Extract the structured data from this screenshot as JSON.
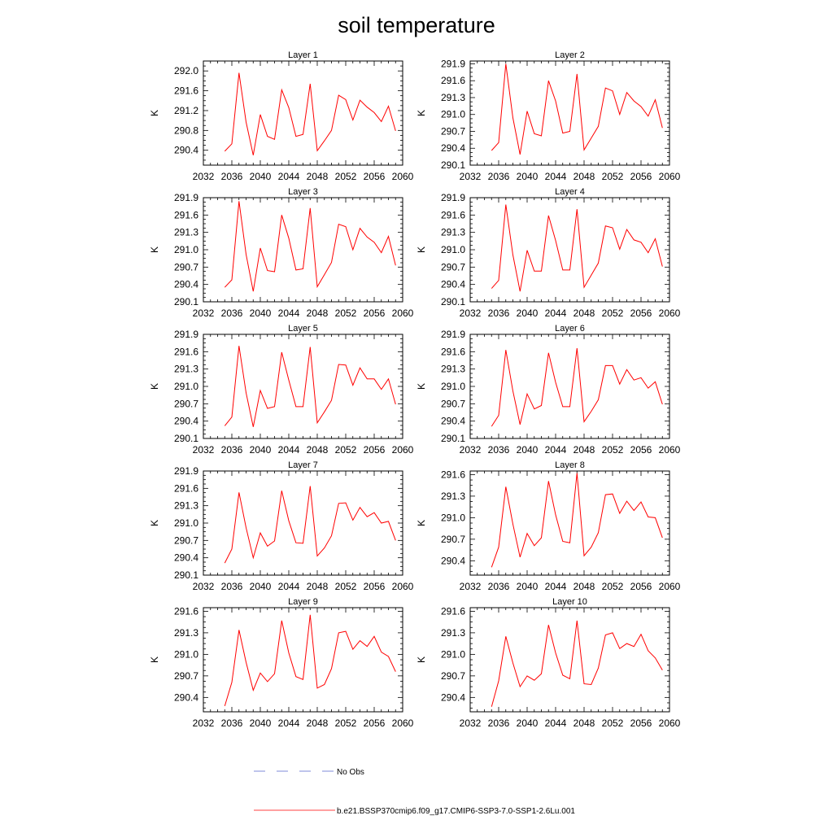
{
  "figure": {
    "title": "soil temperature",
    "legend": [
      {
        "label": "No Obs",
        "color": "#5566cc",
        "style": "dashed"
      },
      {
        "label": "b.e21.BSSP370cmip6.f09_g17.CMIP6-SSP3-7.0-SSP1-2.6Lu.001",
        "color": "#ff0000",
        "style": "solid"
      }
    ]
  },
  "chart_data": [
    {
      "type": "line",
      "title": "Layer 1",
      "xlabel": "",
      "ylabel": "K",
      "xlim": [
        2032,
        2060
      ],
      "ylim": [
        290.1,
        292.2
      ],
      "xticks": [
        2032,
        2036,
        2040,
        2044,
        2048,
        2052,
        2056,
        2060
      ],
      "yticks": [
        "290.4",
        "290.8",
        "291.2",
        "291.6",
        "292.0"
      ],
      "series": [
        {
          "color": "#ff0000",
          "x": [
            2035,
            2036,
            2037,
            2038,
            2039,
            2040,
            2041,
            2042,
            2043,
            2044,
            2045,
            2046,
            2047,
            2048,
            2049,
            2050,
            2051,
            2052,
            2053,
            2054,
            2055,
            2056,
            2057,
            2058,
            2059
          ],
          "y": [
            290.38,
            290.53,
            291.96,
            290.97,
            290.3,
            291.12,
            290.68,
            290.62,
            291.62,
            291.26,
            290.68,
            290.72,
            291.74,
            290.39,
            290.59,
            290.8,
            291.51,
            291.42,
            291.01,
            291.41,
            291.27,
            291.16,
            290.98,
            291.29,
            290.79
          ]
        }
      ]
    },
    {
      "type": "line",
      "title": "Layer 2",
      "xlabel": "",
      "ylabel": "K",
      "xlim": [
        2032,
        2060
      ],
      "ylim": [
        290.1,
        291.95
      ],
      "xticks": [
        2032,
        2036,
        2040,
        2044,
        2048,
        2052,
        2056,
        2060
      ],
      "yticks": [
        "290.1",
        "290.4",
        "290.7",
        "291.0",
        "291.3",
        "291.6",
        "291.9"
      ],
      "series": [
        {
          "color": "#ff0000",
          "x": [
            2035,
            2036,
            2037,
            2038,
            2039,
            2040,
            2041,
            2042,
            2043,
            2044,
            2045,
            2046,
            2047,
            2048,
            2049,
            2050,
            2051,
            2052,
            2053,
            2054,
            2055,
            2056,
            2057,
            2058,
            2059
          ],
          "y": [
            290.36,
            290.5,
            291.9,
            290.94,
            290.29,
            291.06,
            290.66,
            290.62,
            291.6,
            291.24,
            290.67,
            290.7,
            291.72,
            290.37,
            290.58,
            290.79,
            291.47,
            291.42,
            291.0,
            291.39,
            291.24,
            291.14,
            290.97,
            291.26,
            290.76
          ]
        }
      ]
    },
    {
      "type": "line",
      "title": "Layer 3",
      "xlabel": "",
      "ylabel": "K",
      "xlim": [
        2032,
        2060
      ],
      "ylim": [
        290.1,
        291.9
      ],
      "xticks": [
        2032,
        2036,
        2040,
        2044,
        2048,
        2052,
        2056,
        2060
      ],
      "yticks": [
        "290.1",
        "290.4",
        "290.7",
        "291.0",
        "291.3",
        "291.6",
        "291.9"
      ],
      "series": [
        {
          "color": "#ff0000",
          "x": [
            2035,
            2036,
            2037,
            2038,
            2039,
            2040,
            2041,
            2042,
            2043,
            2044,
            2045,
            2046,
            2047,
            2048,
            2049,
            2050,
            2051,
            2052,
            2053,
            2054,
            2055,
            2056,
            2057,
            2058,
            2059
          ],
          "y": [
            290.35,
            290.48,
            291.84,
            290.92,
            290.28,
            291.03,
            290.64,
            290.62,
            291.6,
            291.2,
            290.65,
            290.67,
            291.72,
            290.36,
            290.57,
            290.78,
            291.44,
            291.4,
            291.0,
            291.37,
            291.22,
            291.13,
            290.95,
            291.23,
            290.73
          ]
        }
      ]
    },
    {
      "type": "line",
      "title": "Layer 4",
      "xlabel": "",
      "ylabel": "K",
      "xlim": [
        2032,
        2060
      ],
      "ylim": [
        290.1,
        291.9
      ],
      "xticks": [
        2032,
        2036,
        2040,
        2044,
        2048,
        2052,
        2056,
        2060
      ],
      "yticks": [
        "290.1",
        "290.4",
        "290.7",
        "291.0",
        "291.3",
        "291.6",
        "291.9"
      ],
      "series": [
        {
          "color": "#ff0000",
          "x": [
            2035,
            2036,
            2037,
            2038,
            2039,
            2040,
            2041,
            2042,
            2043,
            2044,
            2045,
            2046,
            2047,
            2048,
            2049,
            2050,
            2051,
            2052,
            2053,
            2054,
            2055,
            2056,
            2057,
            2058,
            2059
          ],
          "y": [
            290.33,
            290.47,
            291.78,
            290.91,
            290.28,
            290.99,
            290.63,
            290.63,
            291.59,
            291.16,
            290.65,
            290.65,
            291.7,
            290.35,
            290.56,
            290.77,
            291.41,
            291.38,
            291.01,
            291.35,
            291.17,
            291.13,
            290.95,
            291.19,
            290.71
          ]
        }
      ]
    },
    {
      "type": "line",
      "title": "Layer 5",
      "xlabel": "",
      "ylabel": "K",
      "xlim": [
        2032,
        2060
      ],
      "ylim": [
        290.1,
        291.9
      ],
      "xticks": [
        2032,
        2036,
        2040,
        2044,
        2048,
        2052,
        2056,
        2060
      ],
      "yticks": [
        "290.1",
        "290.4",
        "290.7",
        "291.0",
        "291.3",
        "291.6",
        "291.9"
      ],
      "series": [
        {
          "color": "#ff0000",
          "x": [
            2035,
            2036,
            2037,
            2038,
            2039,
            2040,
            2041,
            2042,
            2043,
            2044,
            2045,
            2046,
            2047,
            2048,
            2049,
            2050,
            2051,
            2052,
            2053,
            2054,
            2055,
            2056,
            2057,
            2058,
            2059
          ],
          "y": [
            290.32,
            290.47,
            291.7,
            290.89,
            290.3,
            290.93,
            290.62,
            290.65,
            291.59,
            291.11,
            290.65,
            290.65,
            291.68,
            290.37,
            290.56,
            290.76,
            291.38,
            291.37,
            291.02,
            291.32,
            291.13,
            291.13,
            290.95,
            291.13,
            290.69
          ]
        }
      ]
    },
    {
      "type": "line",
      "title": "Layer 6",
      "xlabel": "",
      "ylabel": "K",
      "xlim": [
        2032,
        2060
      ],
      "ylim": [
        290.1,
        291.9
      ],
      "xticks": [
        2032,
        2036,
        2040,
        2044,
        2048,
        2052,
        2056,
        2060
      ],
      "yticks": [
        "290.1",
        "290.4",
        "290.7",
        "291.0",
        "291.3",
        "291.6",
        "291.9"
      ],
      "series": [
        {
          "color": "#ff0000",
          "x": [
            2035,
            2036,
            2037,
            2038,
            2039,
            2040,
            2041,
            2042,
            2043,
            2044,
            2045,
            2046,
            2047,
            2048,
            2049,
            2050,
            2051,
            2052,
            2053,
            2054,
            2055,
            2056,
            2057,
            2058,
            2059
          ],
          "y": [
            290.31,
            290.5,
            291.63,
            290.92,
            290.34,
            290.87,
            290.61,
            290.67,
            291.58,
            291.07,
            290.65,
            290.65,
            291.66,
            290.39,
            290.57,
            290.77,
            291.36,
            291.36,
            291.04,
            291.29,
            291.11,
            291.15,
            290.97,
            291.08,
            290.69
          ]
        }
      ]
    },
    {
      "type": "line",
      "title": "Layer 7",
      "xlabel": "",
      "ylabel": "K",
      "xlim": [
        2032,
        2060
      ],
      "ylim": [
        290.1,
        291.9
      ],
      "xticks": [
        2032,
        2036,
        2040,
        2044,
        2048,
        2052,
        2056,
        2060
      ],
      "yticks": [
        "290.1",
        "290.4",
        "290.7",
        "291.0",
        "291.3",
        "291.6",
        "291.9"
      ],
      "series": [
        {
          "color": "#ff0000",
          "x": [
            2035,
            2036,
            2037,
            2038,
            2039,
            2040,
            2041,
            2042,
            2043,
            2044,
            2045,
            2046,
            2047,
            2048,
            2049,
            2050,
            2051,
            2052,
            2053,
            2054,
            2055,
            2056,
            2057,
            2058,
            2059
          ],
          "y": [
            290.31,
            290.55,
            291.53,
            290.92,
            290.4,
            290.83,
            290.6,
            290.69,
            291.56,
            291.04,
            290.66,
            290.65,
            291.64,
            290.43,
            290.57,
            290.78,
            291.34,
            291.35,
            291.05,
            291.27,
            291.11,
            291.18,
            291.0,
            291.03,
            290.7
          ]
        }
      ]
    },
    {
      "type": "line",
      "title": "Layer 8",
      "xlabel": "",
      "ylabel": "K",
      "xlim": [
        2032,
        2060
      ],
      "ylim": [
        290.2,
        291.65
      ],
      "xticks": [
        2032,
        2036,
        2040,
        2044,
        2048,
        2052,
        2056,
        2060
      ],
      "yticks": [
        "290.4",
        "290.7",
        "291.0",
        "291.3",
        "291.6"
      ],
      "series": [
        {
          "color": "#ff0000",
          "x": [
            2035,
            2036,
            2037,
            2038,
            2039,
            2040,
            2041,
            2042,
            2043,
            2044,
            2045,
            2046,
            2047,
            2048,
            2049,
            2050,
            2051,
            2052,
            2053,
            2054,
            2055,
            2056,
            2057,
            2058,
            2059
          ],
          "y": [
            290.31,
            290.59,
            291.43,
            290.91,
            290.45,
            290.78,
            290.61,
            290.72,
            291.51,
            291.04,
            290.67,
            290.65,
            291.62,
            290.47,
            290.59,
            290.79,
            291.32,
            291.33,
            291.06,
            291.23,
            291.1,
            291.22,
            291.01,
            291.0,
            290.72
          ]
        }
      ]
    },
    {
      "type": "line",
      "title": "Layer 9",
      "xlabel": "",
      "ylabel": "K",
      "xlim": [
        2032,
        2060
      ],
      "ylim": [
        290.2,
        291.65
      ],
      "xticks": [
        2032,
        2036,
        2040,
        2044,
        2048,
        2052,
        2056,
        2060
      ],
      "yticks": [
        "290.4",
        "290.7",
        "291.0",
        "291.3",
        "291.6"
      ],
      "series": [
        {
          "color": "#ff0000",
          "x": [
            2035,
            2036,
            2037,
            2038,
            2039,
            2040,
            2041,
            2042,
            2043,
            2044,
            2045,
            2046,
            2047,
            2048,
            2049,
            2050,
            2051,
            2052,
            2053,
            2054,
            2055,
            2056,
            2057,
            2058,
            2059
          ],
          "y": [
            290.28,
            290.61,
            291.34,
            290.89,
            290.5,
            290.74,
            290.62,
            290.73,
            291.47,
            291.02,
            290.69,
            290.65,
            291.55,
            290.53,
            290.58,
            290.8,
            291.3,
            291.32,
            291.07,
            291.19,
            291.11,
            291.25,
            291.03,
            290.97,
            290.76
          ]
        }
      ]
    },
    {
      "type": "line",
      "title": "Layer 10",
      "xlabel": "",
      "ylabel": "K",
      "xlim": [
        2032,
        2060
      ],
      "ylim": [
        290.2,
        291.65
      ],
      "xticks": [
        2032,
        2036,
        2040,
        2044,
        2048,
        2052,
        2056,
        2060
      ],
      "yticks": [
        "290.4",
        "290.7",
        "291.0",
        "291.3",
        "291.6"
      ],
      "series": [
        {
          "color": "#ff0000",
          "x": [
            2035,
            2036,
            2037,
            2038,
            2039,
            2040,
            2041,
            2042,
            2043,
            2044,
            2045,
            2046,
            2047,
            2048,
            2049,
            2050,
            2051,
            2052,
            2053,
            2054,
            2055,
            2056,
            2057,
            2058,
            2059
          ],
          "y": [
            290.27,
            290.63,
            291.25,
            290.88,
            290.55,
            290.7,
            290.64,
            290.73,
            291.41,
            291.02,
            290.71,
            290.66,
            291.47,
            290.59,
            290.58,
            290.81,
            291.27,
            291.3,
            291.08,
            291.15,
            291.11,
            291.28,
            291.05,
            290.95,
            290.78
          ]
        }
      ]
    }
  ]
}
